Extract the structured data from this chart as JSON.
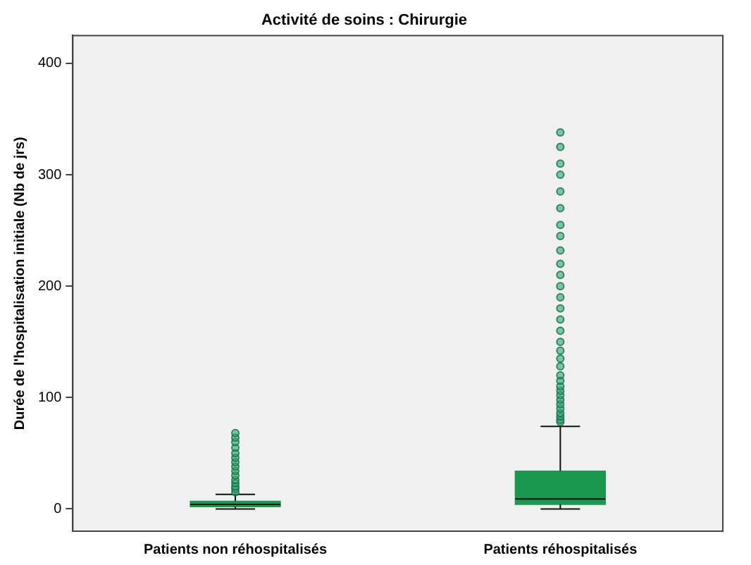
{
  "chart_data": {
    "type": "box",
    "title": "Activité de soins : Chirurgie",
    "ylabel": "Durée de l'hospitalisation initiale (Nb de jrs)",
    "categories": [
      "Patients non réhospitalisés",
      "Patients réhospitalisés"
    ],
    "color": "#1a9850",
    "boxes": [
      {
        "low": 0,
        "q1": 2,
        "median": 4,
        "q3": 7,
        "high": 13,
        "outliers": [
          15,
          18,
          20,
          23,
          26,
          30,
          34,
          38,
          42,
          46,
          50,
          55,
          60,
          64,
          68
        ]
      },
      {
        "low": 0,
        "q1": 4,
        "median": 9,
        "q3": 34,
        "high": 74,
        "outliers": [
          78,
          80,
          83,
          86,
          90,
          94,
          98,
          102,
          106,
          110,
          115,
          120,
          128,
          135,
          142,
          150,
          160,
          170,
          180,
          190,
          200,
          210,
          220,
          232,
          245,
          255,
          270,
          285,
          300,
          310,
          325,
          338
        ]
      }
    ],
    "ylim": [
      -20,
      425
    ],
    "yticks": [
      0,
      100,
      200,
      300,
      400
    ],
    "grid": false,
    "legend": false
  }
}
